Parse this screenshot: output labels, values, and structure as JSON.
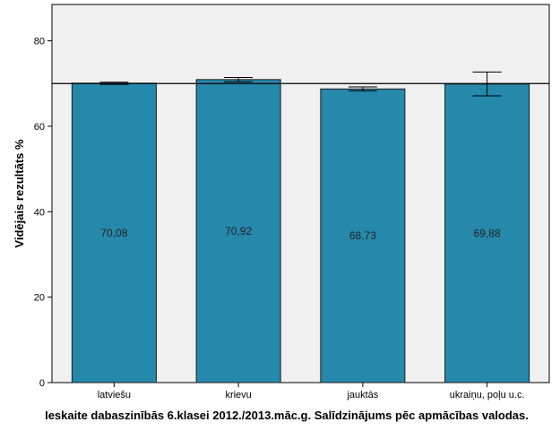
{
  "chart_data": {
    "type": "bar",
    "categories": [
      "latviešu",
      "krievu",
      "jauktās",
      "ukraiņu, poļu u.c."
    ],
    "values": [
      70.08,
      70.92,
      68.73,
      69.88
    ],
    "data_labels": [
      "70,08",
      "70,92",
      "68,73",
      "69,88"
    ],
    "error_bars": [
      {
        "low": 69.8,
        "high": 70.3
      },
      {
        "low": 70.4,
        "high": 71.4
      },
      {
        "low": 68.3,
        "high": 69.2
      },
      {
        "low": 67.1,
        "high": 72.7
      }
    ],
    "reference_line": 70,
    "ylabel": "Vidējais rezultāts %",
    "xlabel": "",
    "ylim": [
      0,
      88.5
    ],
    "yticks": [
      0,
      20,
      40,
      60,
      80
    ],
    "ytick_labels": [
      "0",
      "20",
      "40",
      "60",
      "80"
    ],
    "caption": "Ieskaite dabaszinībās 6.klasei 2012./2013.māc.g. Salīdzinājums pēc apmācības valodas.",
    "colors": {
      "bar": "#2688ab",
      "plot_background": "#f0f0f0",
      "bar_edge": "#1a1a1a"
    }
  }
}
